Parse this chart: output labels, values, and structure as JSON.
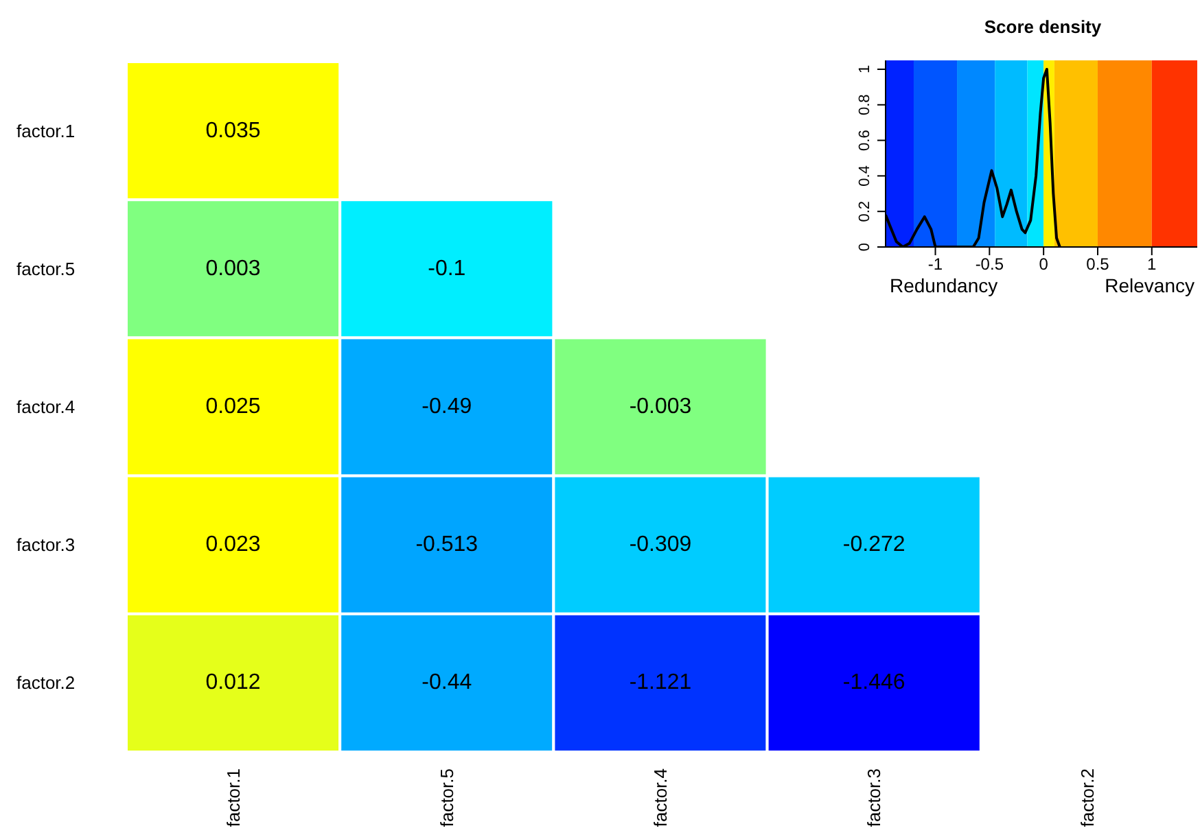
{
  "chart_data": [
    {
      "type": "heatmap",
      "categories": [
        "factor.1",
        "factor.5",
        "factor.4",
        "factor.3",
        "factor.2"
      ],
      "y_categories": [
        "factor.1",
        "factor.5",
        "factor.4",
        "factor.3",
        "factor.2"
      ],
      "cells": [
        [
          0.035,
          null,
          null,
          null,
          null
        ],
        [
          0.003,
          -0.1,
          null,
          null,
          null
        ],
        [
          0.025,
          -0.49,
          -0.003,
          null,
          null
        ],
        [
          0.023,
          -0.513,
          -0.309,
          -0.272,
          null
        ],
        [
          0.012,
          -0.44,
          -1.121,
          -1.446,
          null
        ]
      ],
      "colors": [
        [
          "#ffff00",
          null,
          null,
          null,
          null
        ],
        [
          "#80ff80",
          "#00eeff",
          null,
          null,
          null
        ],
        [
          "#ffff00",
          "#00aaff",
          "#80ff80",
          null,
          null
        ],
        [
          "#ffff00",
          "#00a5ff",
          "#00ccff",
          "#00ccff",
          null
        ],
        [
          "#e5ff1a",
          "#00aaff",
          "#0033ff",
          "#0000ff",
          null
        ]
      ],
      "data_labels": true
    },
    {
      "type": "line",
      "title": "Score density",
      "annotations": [
        "Redundancy",
        "Relevancy"
      ],
      "x": [
        -1.46,
        -1.42,
        -1.36,
        -1.3,
        -1.24,
        -1.17,
        -1.1,
        -1.04,
        -1.0,
        -0.8,
        -0.65,
        -0.6,
        -0.55,
        -0.48,
        -0.43,
        -0.38,
        -0.34,
        -0.3,
        -0.25,
        -0.2,
        -0.17,
        -0.12,
        -0.07,
        -0.03,
        0.0,
        0.03,
        0.06,
        0.09,
        0.12,
        0.15
      ],
      "series": [
        {
          "color": "#000000",
          "values": [
            0.18,
            0.12,
            0.03,
            0.0,
            0.02,
            0.1,
            0.17,
            0.1,
            0.0,
            0.0,
            0.0,
            0.05,
            0.25,
            0.43,
            0.33,
            0.17,
            0.24,
            0.32,
            0.2,
            0.1,
            0.08,
            0.15,
            0.4,
            0.75,
            0.95,
            1.0,
            0.7,
            0.3,
            0.05,
            0.0
          ]
        }
      ],
      "xlim": [
        -1.46,
        1.42
      ],
      "xticks": [
        -1,
        -0.5,
        0,
        0.5,
        1
      ],
      "ylim": [
        0,
        1.05
      ],
      "yticks": [
        0,
        0.2,
        0.4,
        0.6,
        0.8,
        1
      ],
      "bands": [
        {
          "axis": "x",
          "from": -1.46,
          "to": -1.2,
          "color": "#0022ff"
        },
        {
          "axis": "x",
          "from": -1.2,
          "to": -0.8,
          "color": "#0055ff"
        },
        {
          "axis": "x",
          "from": -0.8,
          "to": -0.45,
          "color": "#0088ff"
        },
        {
          "axis": "x",
          "from": -0.45,
          "to": -0.15,
          "color": "#00bbff"
        },
        {
          "axis": "x",
          "from": -0.15,
          "to": 0,
          "color": "#00e5ff"
        },
        {
          "axis": "x",
          "from": 0,
          "to": 0.1,
          "color": "#ffee00"
        },
        {
          "axis": "x",
          "from": 0.1,
          "to": 0.5,
          "color": "#ffc000"
        },
        {
          "axis": "x",
          "from": 0.5,
          "to": 1,
          "color": "#ff8800"
        },
        {
          "axis": "x",
          "from": 1,
          "to": 1.42,
          "color": "#ff3300"
        }
      ],
      "marker": "none",
      "line_style": "solid"
    }
  ]
}
